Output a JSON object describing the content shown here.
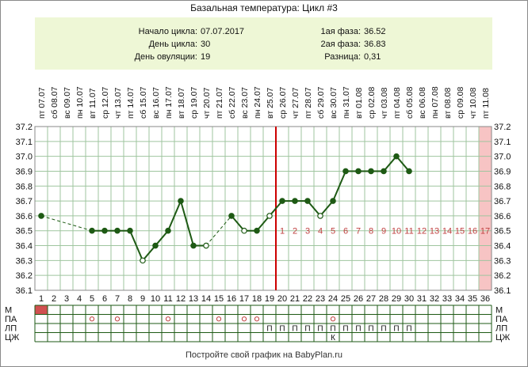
{
  "title": "Базальная температура: Цикл #3",
  "info": {
    "start_label": "Начало цикла:",
    "start_value": "07.07.2017",
    "day_label": "День цикла:",
    "day_value": "30",
    "ovulation_label": "День овуляции:",
    "ovulation_value": "19",
    "phase1_label": "1ая фаза:",
    "phase1_value": "36.52",
    "phase2_label": "2ая фаза:",
    "phase2_value": "36.83",
    "diff_label": "Разница:",
    "diff_value": "0,31"
  },
  "footer": "Постройте свой график на BabyPlan.ru",
  "colors": {
    "line": "#1e5a14",
    "ovulation": "#cc0000",
    "grid": "#9fc59f",
    "red_text": "#c04040",
    "shade": "#f7c4c4",
    "m_mark": "#d05050"
  },
  "chart_data": {
    "type": "line",
    "weekdays": [
      "пт",
      "сб",
      "вс",
      "пн",
      "вт",
      "ср",
      "чт",
      "пт",
      "сб",
      "вс",
      "пн",
      "вт",
      "ср",
      "чт",
      "пт",
      "сб",
      "вс",
      "пн",
      "вт",
      "ср",
      "чт",
      "пт",
      "сб",
      "вс",
      "пн",
      "вт",
      "ср",
      "чт",
      "пт",
      "сб",
      "вс",
      "пн",
      "вт",
      "ср",
      "чт",
      "пт"
    ],
    "dates": [
      "07.07",
      "08.07",
      "09.07",
      "10.07",
      "11.07",
      "12.07",
      "13.07",
      "14.07",
      "15.07",
      "16.07",
      "17.07",
      "18.07",
      "19.07",
      "20.07",
      "21.07",
      "22.07",
      "23.07",
      "24.07",
      "25.07",
      "26.07",
      "27.07",
      "28.07",
      "29.07",
      "30.07",
      "31.07",
      "01.08",
      "02.08",
      "03.08",
      "04.08",
      "05.08",
      "06.08",
      "07.08",
      "08.08",
      "09.08",
      "10.08",
      "11.08"
    ],
    "days": [
      1,
      2,
      3,
      4,
      5,
      6,
      7,
      8,
      9,
      10,
      11,
      12,
      13,
      14,
      15,
      16,
      17,
      18,
      19,
      20,
      21,
      22,
      23,
      24,
      25,
      26,
      27,
      28,
      29,
      30,
      31,
      32,
      33,
      34,
      35,
      36
    ],
    "temperatures": [
      36.6,
      null,
      null,
      null,
      36.5,
      36.5,
      36.5,
      36.5,
      36.3,
      36.4,
      36.5,
      36.7,
      36.4,
      36.4,
      null,
      36.6,
      36.5,
      36.5,
      36.6,
      36.7,
      36.7,
      36.7,
      36.6,
      36.7,
      36.9,
      36.9,
      36.9,
      36.9,
      37.0,
      36.9,
      null,
      null,
      null,
      null,
      null,
      null
    ],
    "open_points": [
      9,
      14,
      17,
      19,
      23
    ],
    "y_ticks": [
      "36.1",
      "36.2",
      "36.3",
      "36.4",
      "36.5",
      "36.6",
      "36.7",
      "36.8",
      "36.9",
      "37.0",
      "37.1",
      "37.2"
    ],
    "ylim": [
      36.1,
      37.2
    ],
    "ovulation_day": 19,
    "shaded_day": 36,
    "luteal_start_day": 20,
    "luteal_labels": [
      "1",
      "2",
      "3",
      "4",
      "5",
      "6",
      "7",
      "8",
      "9",
      "10",
      "11",
      "12",
      "13",
      "14",
      "15",
      "16",
      "17"
    ],
    "grid": true,
    "rows": {
      "labels": [
        "М",
        "ПА",
        "ЛП",
        "ЦЖ"
      ],
      "M_days": [
        1
      ],
      "PA_days": [
        5,
        7,
        11,
        15,
        17,
        18,
        24
      ],
      "LP_days": [
        19,
        20,
        21,
        22,
        23,
        24,
        25,
        26,
        27,
        28,
        29,
        30
      ],
      "LP_symbol": "П",
      "CZ_days": [
        24
      ],
      "CZ_symbol": "К"
    }
  }
}
